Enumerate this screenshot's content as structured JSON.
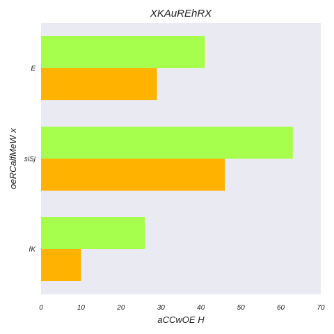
{
  "chart_data": {
    "type": "bar",
    "orientation": "horizontal",
    "title": "XKAuREhRX",
    "xlabel": "aCCwOE H",
    "ylabel": "oeRCalfMeW x",
    "categories": [
      "E",
      "siSj",
      "fK"
    ],
    "series": [
      {
        "values": [
          41,
          63,
          26
        ],
        "color": "#a6ff4d"
      },
      {
        "values": [
          29,
          46,
          10
        ],
        "color": "#ffb300"
      }
    ],
    "xlim": [
      0,
      70
    ],
    "xticks": [
      0,
      10,
      20,
      30,
      40,
      50,
      60,
      70
    ],
    "grid": false,
    "background_color": "#eaeaf2"
  }
}
